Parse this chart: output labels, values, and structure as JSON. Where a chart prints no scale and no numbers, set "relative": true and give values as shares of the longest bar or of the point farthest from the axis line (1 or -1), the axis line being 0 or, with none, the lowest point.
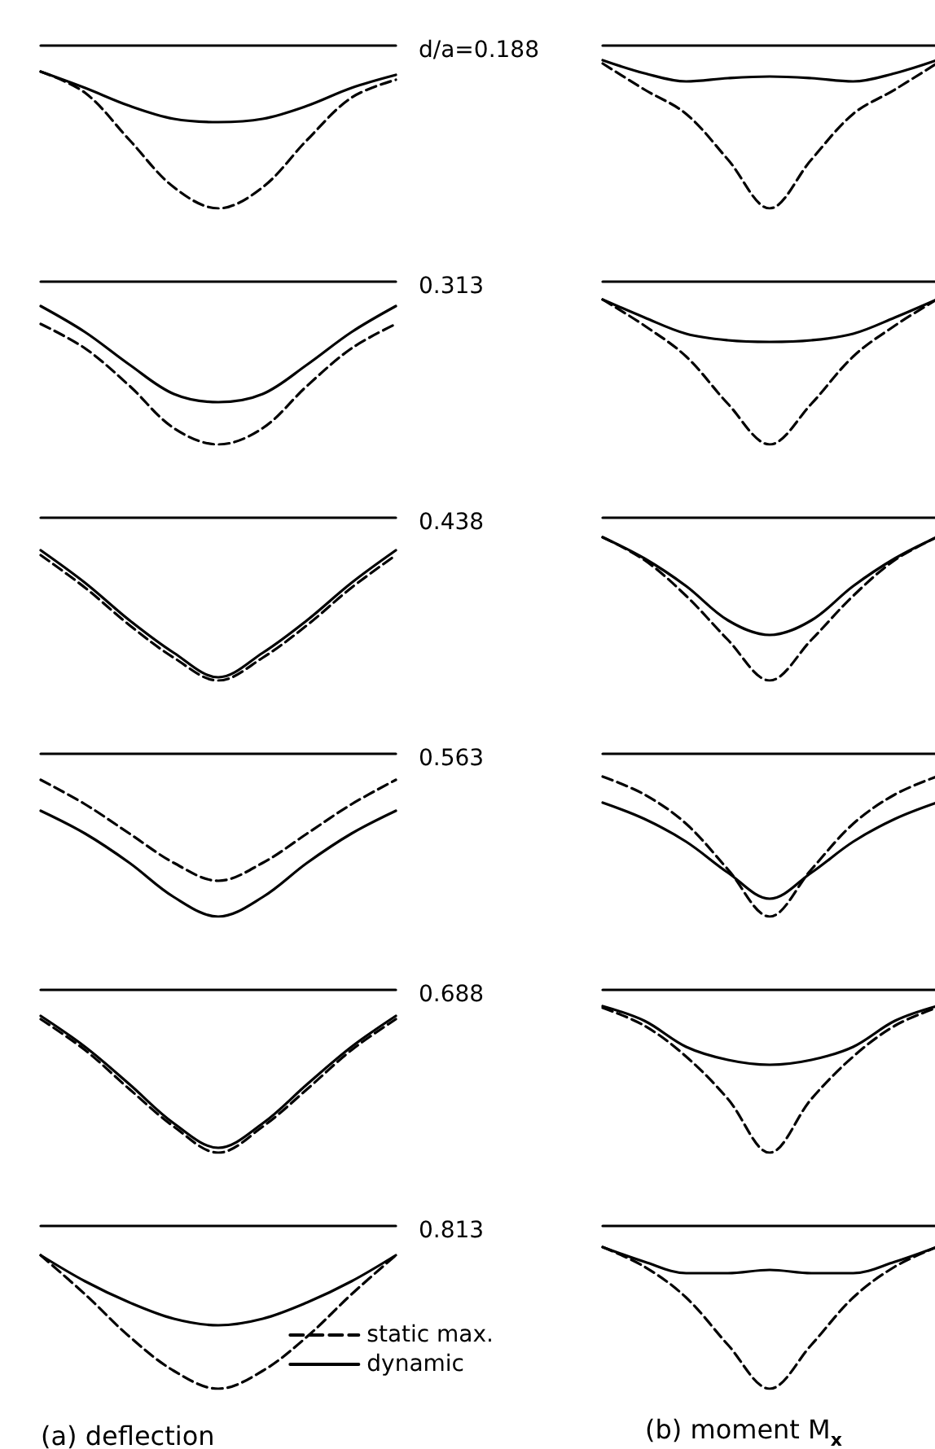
{
  "chart_data": [
    {
      "type": "line",
      "relative": true,
      "marker": "none",
      "categories": [
        null,
        null,
        null,
        null,
        null,
        null,
        null,
        null,
        null
      ],
      "series": [
        {
          "color": "#000000",
          "line_style": "dashed",
          "values": [
            -0.16,
            -0.29,
            -0.58,
            -0.87,
            -1,
            -0.87,
            -0.58,
            -0.32,
            -0.21
          ]
        },
        {
          "color": "#000000",
          "line_style": "solid",
          "values": [
            -0.16,
            -0.26,
            -0.37,
            -0.45,
            -0.47,
            -0.45,
            -0.37,
            -0.26,
            -0.18
          ]
        }
      ]
    },
    {
      "type": "line",
      "relative": true,
      "marker": "none",
      "title": "d/a=0.188",
      "categories": [
        null,
        null,
        null,
        null,
        null,
        null,
        null,
        null,
        null
      ],
      "series": [
        {
          "color": "#000000",
          "line_style": "dashed",
          "values": [
            -0.11,
            -0.27,
            -0.42,
            -0.7,
            -1,
            -0.7,
            -0.42,
            -0.27,
            -0.11
          ]
        },
        {
          "color": "#000000",
          "line_style": "solid",
          "values": [
            -0.09,
            -0.17,
            -0.22,
            -0.2,
            -0.19,
            -0.2,
            -0.22,
            -0.17,
            -0.09
          ]
        }
      ]
    },
    {
      "type": "line",
      "relative": true,
      "marker": "none",
      "categories": [
        null,
        null,
        null,
        null,
        null,
        null,
        null,
        null,
        null
      ],
      "series": [
        {
          "color": "#000000",
          "line_style": "dashed",
          "values": [
            -0.26,
            -0.41,
            -0.64,
            -0.9,
            -1,
            -0.9,
            -0.64,
            -0.41,
            -0.26
          ]
        },
        {
          "color": "#000000",
          "line_style": "solid",
          "values": [
            -0.15,
            -0.31,
            -0.51,
            -0.69,
            -0.74,
            -0.69,
            -0.51,
            -0.31,
            -0.15
          ]
        }
      ]
    },
    {
      "type": "line",
      "relative": true,
      "marker": "none",
      "title": "0.313",
      "categories": [
        null,
        null,
        null,
        null,
        null,
        null,
        null,
        null,
        null
      ],
      "series": [
        {
          "color": "#000000",
          "line_style": "dashed",
          "values": [
            -0.11,
            -0.27,
            -0.46,
            -0.75,
            -1,
            -0.75,
            -0.46,
            -0.27,
            -0.11
          ]
        },
        {
          "color": "#000000",
          "line_style": "solid",
          "values": [
            -0.11,
            -0.22,
            -0.32,
            -0.36,
            -0.37,
            -0.36,
            -0.32,
            -0.22,
            -0.11
          ]
        }
      ]
    },
    {
      "type": "line",
      "relative": true,
      "marker": "none",
      "categories": [
        null,
        null,
        null,
        null,
        null,
        null,
        null,
        null,
        null
      ],
      "series": [
        {
          "color": "#000000",
          "line_style": "dashed",
          "values": [
            -0.23,
            -0.43,
            -0.66,
            -0.86,
            -1,
            -0.86,
            -0.66,
            -0.43,
            -0.23
          ]
        },
        {
          "color": "#000000",
          "line_style": "solid",
          "values": [
            -0.2,
            -0.4,
            -0.63,
            -0.83,
            -0.98,
            -0.83,
            -0.63,
            -0.4,
            -0.2
          ]
        }
      ]
    },
    {
      "type": "line",
      "relative": true,
      "marker": "none",
      "title": "0.438",
      "categories": [
        null,
        null,
        null,
        null,
        null,
        null,
        null,
        null,
        null
      ],
      "series": [
        {
          "color": "#000000",
          "line_style": "dashed",
          "values": [
            -0.12,
            -0.26,
            -0.48,
            -0.75,
            -1,
            -0.75,
            -0.48,
            -0.26,
            -0.12
          ]
        },
        {
          "color": "#000000",
          "line_style": "solid",
          "values": [
            -0.12,
            -0.25,
            -0.42,
            -0.63,
            -0.72,
            -0.63,
            -0.42,
            -0.25,
            -0.12
          ]
        }
      ]
    },
    {
      "type": "line",
      "relative": true,
      "marker": "none",
      "categories": [
        null,
        null,
        null,
        null,
        null,
        null,
        null,
        null,
        null
      ],
      "series": [
        {
          "color": "#000000",
          "line_style": "dashed",
          "values": [
            -0.16,
            -0.31,
            -0.49,
            -0.67,
            -0.78,
            -0.67,
            -0.49,
            -0.31,
            -0.16
          ]
        },
        {
          "color": "#000000",
          "line_style": "solid",
          "values": [
            -0.35,
            -0.49,
            -0.67,
            -0.88,
            -1,
            -0.88,
            -0.67,
            -0.49,
            -0.35
          ]
        }
      ]
    },
    {
      "type": "line",
      "relative": true,
      "marker": "none",
      "title": "0.563",
      "categories": [
        null,
        null,
        null,
        null,
        null,
        null,
        null,
        null,
        null
      ],
      "series": [
        {
          "color": "#000000",
          "line_style": "dashed",
          "values": [
            -0.14,
            -0.25,
            -0.43,
            -0.71,
            -1,
            -0.71,
            -0.43,
            -0.25,
            -0.14
          ]
        },
        {
          "color": "#000000",
          "line_style": "solid",
          "values": [
            -0.3,
            -0.4,
            -0.54,
            -0.73,
            -0.89,
            -0.73,
            -0.54,
            -0.4,
            -0.3
          ]
        }
      ]
    },
    {
      "type": "line",
      "relative": true,
      "marker": "none",
      "categories": [
        null,
        null,
        null,
        null,
        null,
        null,
        null,
        null,
        null
      ],
      "series": [
        {
          "color": "#000000",
          "line_style": "dashed",
          "values": [
            -0.18,
            -0.37,
            -0.61,
            -0.84,
            -1,
            -0.84,
            -0.61,
            -0.37,
            -0.18
          ]
        },
        {
          "color": "#000000",
          "line_style": "solid",
          "values": [
            -0.16,
            -0.35,
            -0.58,
            -0.82,
            -0.97,
            -0.82,
            -0.58,
            -0.35,
            -0.16
          ]
        }
      ]
    },
    {
      "type": "line",
      "relative": true,
      "marker": "none",
      "title": "0.688",
      "categories": [
        null,
        null,
        null,
        null,
        null,
        null,
        null,
        null,
        null
      ],
      "series": [
        {
          "color": "#000000",
          "line_style": "dashed",
          "values": [
            -0.11,
            -0.22,
            -0.41,
            -0.67,
            -1,
            -0.67,
            -0.41,
            -0.22,
            -0.11
          ]
        },
        {
          "color": "#000000",
          "line_style": "solid",
          "values": [
            -0.1,
            -0.19,
            -0.35,
            -0.43,
            -0.46,
            -0.43,
            -0.35,
            -0.19,
            -0.1
          ]
        }
      ]
    },
    {
      "type": "line",
      "relative": true,
      "marker": "none",
      "xlabel": "(a) deflection",
      "legend": "bottom right",
      "categories": [
        null,
        null,
        null,
        null,
        null,
        null,
        null,
        null,
        null
      ],
      "series": [
        {
          "name": "static max.",
          "color": "#000000",
          "line_style": "dashed",
          "values": [
            -0.18,
            -0.42,
            -0.68,
            -0.89,
            -1,
            -0.89,
            -0.68,
            -0.42,
            -0.18
          ]
        },
        {
          "name": "dynamic",
          "color": "#000000",
          "line_style": "solid",
          "values": [
            -0.18,
            -0.34,
            -0.47,
            -0.57,
            -0.61,
            -0.57,
            -0.47,
            -0.34,
            -0.18
          ]
        }
      ]
    },
    {
      "type": "line",
      "relative": true,
      "marker": "none",
      "title": "0.813",
      "xlabel": "(b) moment M$_{x}$",
      "categories": [
        null,
        null,
        null,
        null,
        null,
        null,
        null,
        null,
        null
      ],
      "series": [
        {
          "color": "#000000",
          "line_style": "dashed",
          "values": [
            -0.13,
            -0.25,
            -0.44,
            -0.73,
            -1,
            -0.73,
            -0.44,
            -0.25,
            -0.13
          ]
        },
        {
          "color": "#000000",
          "line_style": "solid",
          "values": [
            -0.13,
            -0.22,
            -0.29,
            -0.29,
            -0.27,
            -0.29,
            -0.29,
            -0.22,
            -0.13
          ]
        }
      ]
    }
  ]
}
